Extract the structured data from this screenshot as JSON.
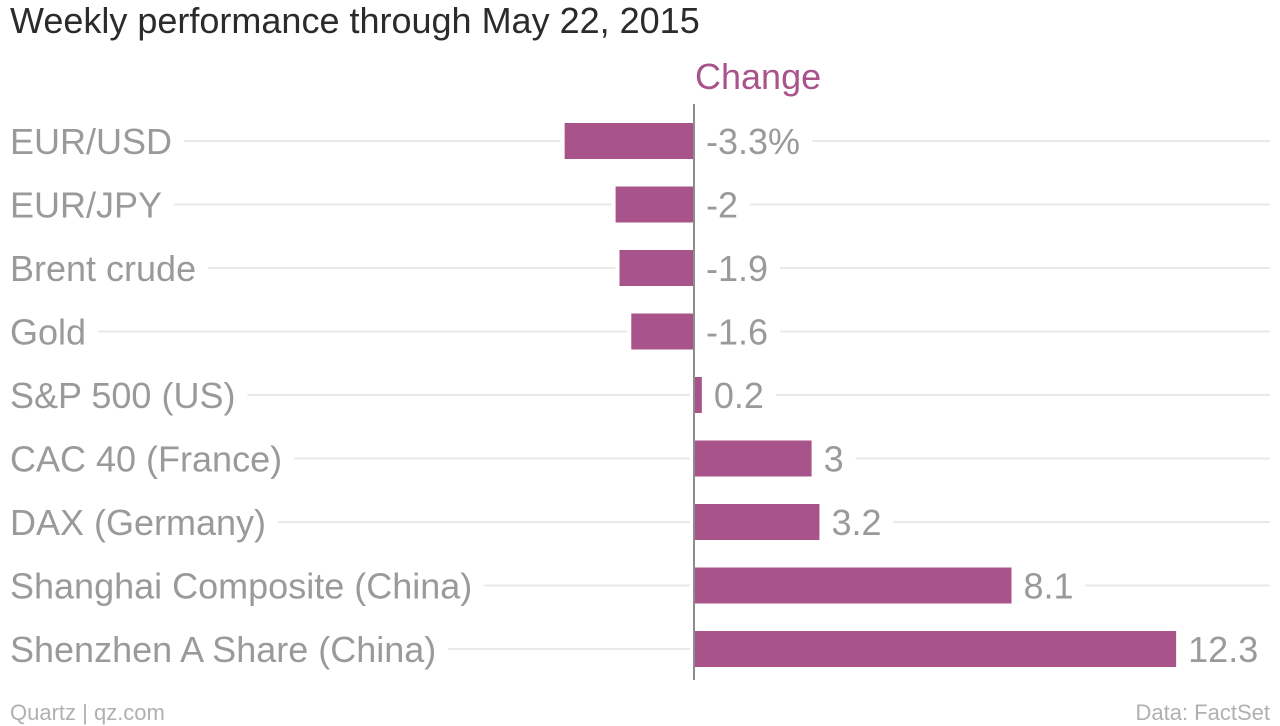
{
  "chart_data": {
    "type": "bar",
    "orientation": "horizontal",
    "title": "Weekly performance through May 22, 2015",
    "series": [
      {
        "name": "Change",
        "color": "#a8548a",
        "values": [
          -3.3,
          -2,
          -1.9,
          -1.6,
          0.2,
          3,
          3.2,
          8.1,
          12.3
        ]
      }
    ],
    "categories": [
      "EUR/USD",
      "EUR/JPY",
      "Brent crude",
      "Gold",
      "S&P 500 (US)",
      "CAC 40 (France)",
      "DAX (Germany)",
      "Shanghai Composite (China)",
      "Shenzhen A Share (China)"
    ],
    "value_labels": [
      "-3.3%",
      "-2",
      "-1.9",
      "-1.6",
      "0.2",
      "3",
      "3.2",
      "8.1",
      "12.3"
    ],
    "xlim": [
      -3.3,
      12.3
    ],
    "grid": true,
    "legend": "none"
  },
  "footer": {
    "source_left": "Quartz | qz.com",
    "source_right": "Data: FactSet"
  }
}
